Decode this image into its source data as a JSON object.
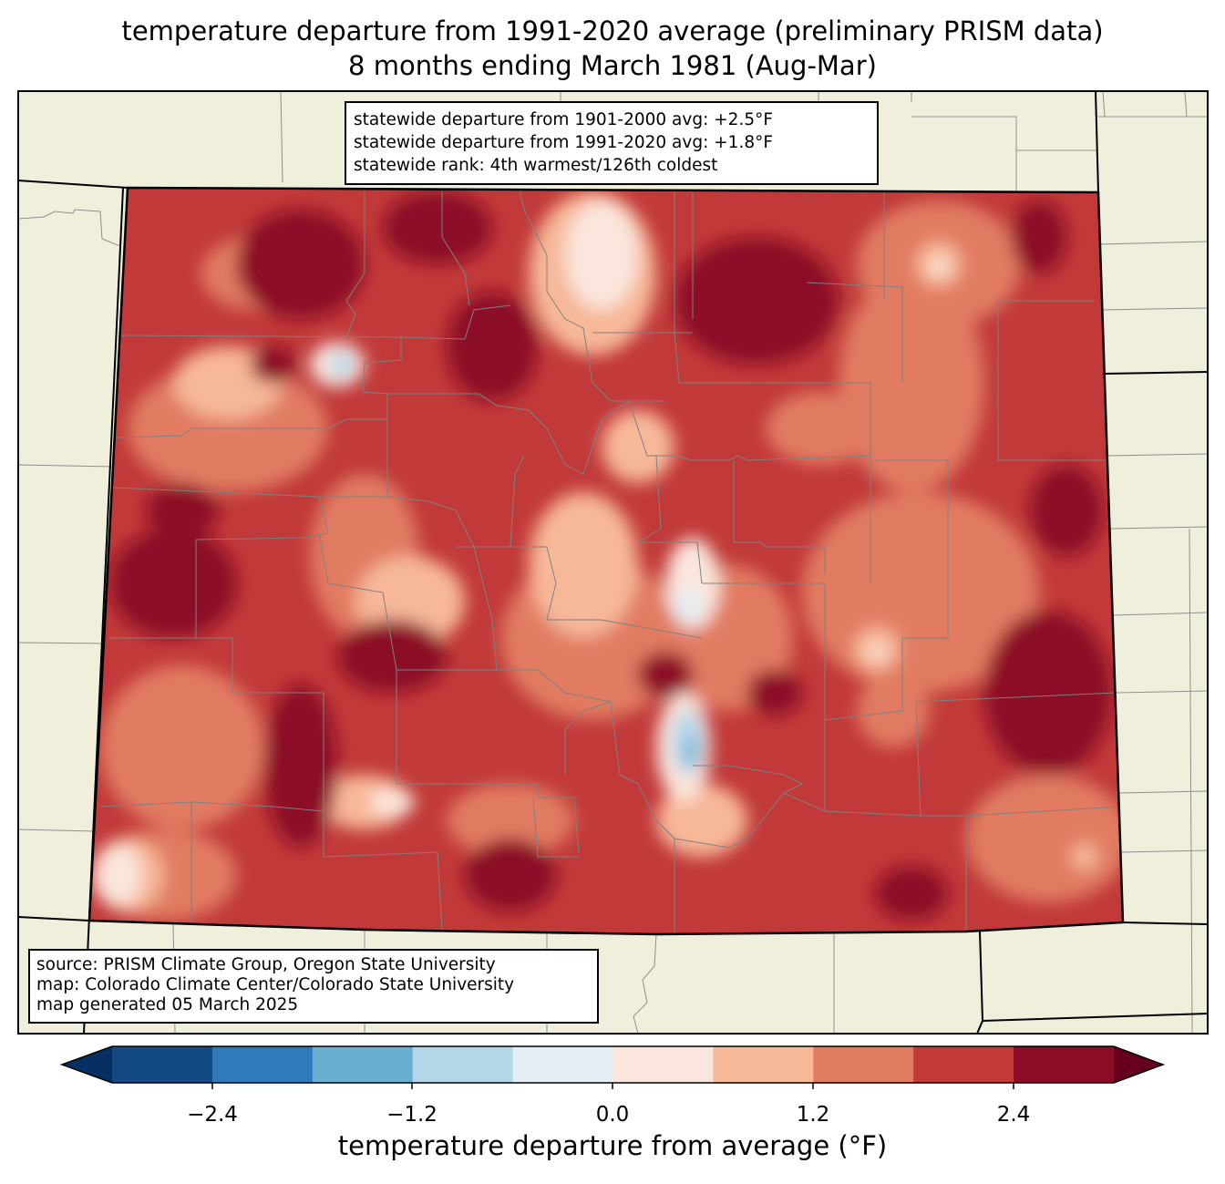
{
  "title": {
    "line1": "temperature departure from 1991-2020 average (preliminary PRISM data)",
    "line2": "8 months ending March 1981 (Aug-Mar)"
  },
  "stats": {
    "line1": "statewide departure from 1901-2000 avg: +2.5°F",
    "line2": "statewide departure from 1991-2020 avg: +1.8°F",
    "line3": "statewide rank: 4th warmest/126th coldest"
  },
  "credits": {
    "line1": "source: PRISM Climate Group, Oregon State University",
    "line2": "map: Colorado Climate Center/Colorado State University",
    "line3": "map generated 05 March 2025"
  },
  "colorbar": {
    "title": "temperature departure from average (°F)",
    "ticks": [
      "−2.4",
      "−1.2",
      "0.0",
      "1.2",
      "2.4"
    ],
    "colors": [
      "#053061",
      "#134a86",
      "#2f7ab8",
      "#6aaed2",
      "#b3d6e9",
      "#e4eef4",
      "#fae6dd",
      "#f7b898",
      "#e17b62",
      "#c13a39",
      "#8c0c25",
      "#67001f"
    ]
  },
  "colors": {
    "background_land": "#efefdb",
    "state_border": "#000000",
    "county_lines": "#808080"
  }
}
